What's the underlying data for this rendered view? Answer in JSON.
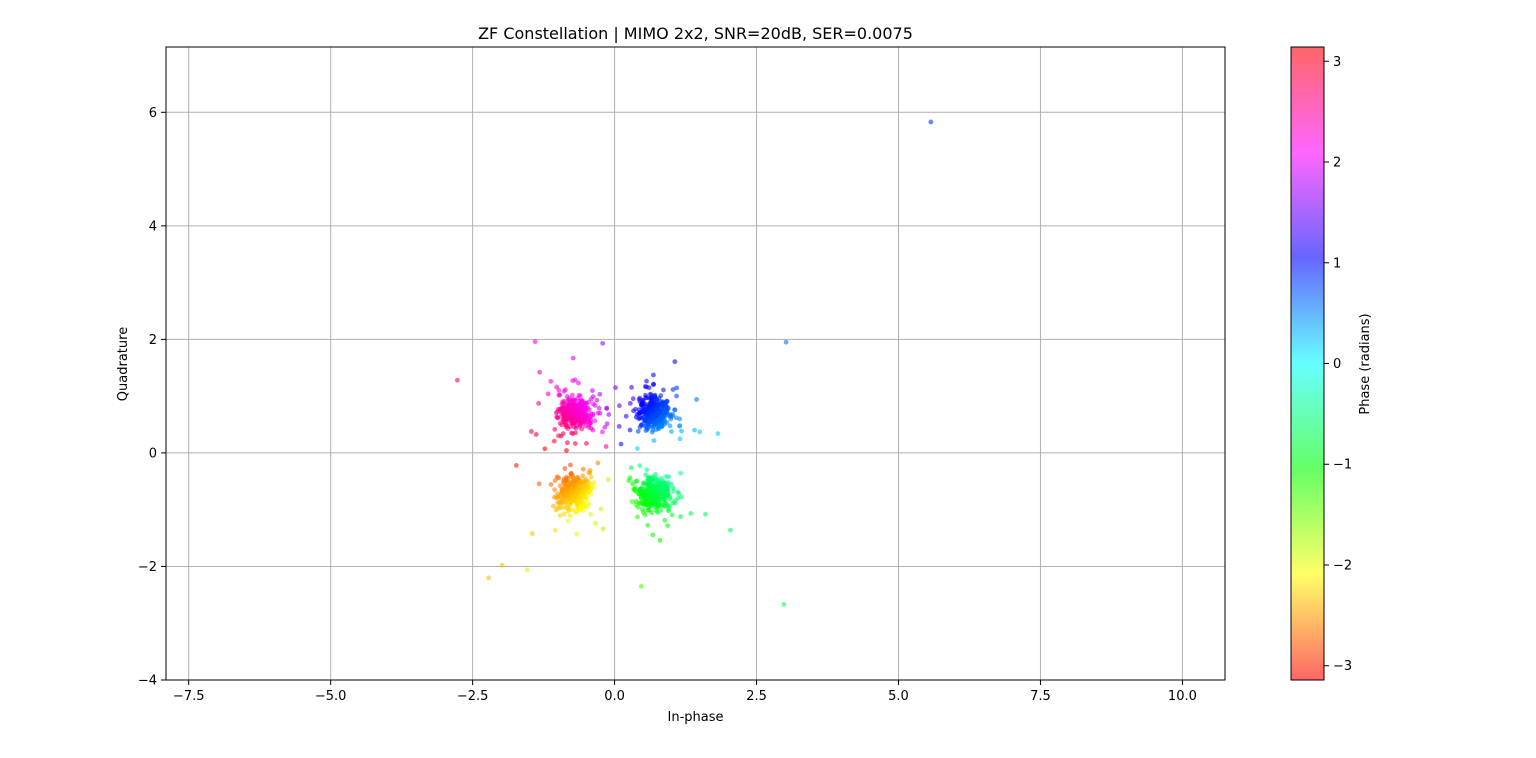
{
  "chart_data": {
    "type": "scatter",
    "title": "ZF Constellation | MIMO 2x2, SNR=20dB, SER=0.0075",
    "xlabel": "In-phase",
    "ylabel": "Quadrature",
    "xlim": [
      -7.9,
      10.75
    ],
    "ylim": [
      -4.0,
      7.15
    ],
    "xticks": [
      -7.5,
      -5.0,
      -2.5,
      0.0,
      2.5,
      5.0,
      7.5,
      10.0
    ],
    "xtick_labels": [
      "−7.5",
      "−5.0",
      "−2.5",
      "0.0",
      "2.5",
      "5.0",
      "7.5",
      "10.0"
    ],
    "yticks": [
      -4,
      -2,
      0,
      2,
      4,
      6
    ],
    "ytick_labels": [
      "−4",
      "−2",
      "0",
      "2",
      "4",
      "6"
    ],
    "grid": true,
    "colorbar": {
      "label": "Phase (radians)",
      "range": [
        -3.14159,
        3.14159
      ],
      "colormap": "hsv",
      "alpha": 0.6,
      "ticks": [
        -3,
        -2,
        -1,
        0,
        1,
        2,
        3
      ],
      "tick_labels": [
        "−3",
        "−2",
        "−1",
        "0",
        "1",
        "2",
        "3"
      ]
    },
    "clusters": [
      {
        "center": [
          0.71,
          0.71
        ],
        "count": 375
      },
      {
        "center": [
          -0.71,
          0.71
        ],
        "count": 375
      },
      {
        "center": [
          -0.71,
          -0.71
        ],
        "count": 375
      },
      {
        "center": [
          0.71,
          -0.71
        ],
        "count": 375
      }
    ],
    "outliers": [
      [
        5.57,
        5.83
      ],
      [
        3.02,
        1.95
      ],
      [
        2.98,
        -2.67
      ],
      [
        -2.77,
        1.28
      ],
      [
        -1.4,
        1.96
      ],
      [
        -0.21,
        1.93
      ],
      [
        -2.22,
        -2.2
      ],
      [
        -1.98,
        -1.98
      ],
      [
        -1.54,
        -2.06
      ],
      [
        0.47,
        -2.35
      ],
      [
        2.04,
        -1.36
      ],
      [
        1.82,
        0.34
      ],
      [
        -1.73,
        -0.22
      ],
      [
        -0.73,
        1.67
      ],
      [
        -1.32,
        1.42
      ],
      [
        0.8,
        -1.54
      ],
      [
        1.6,
        -1.08
      ],
      [
        -1.45,
        -1.42
      ],
      [
        1.5,
        0.37
      ]
    ]
  }
}
